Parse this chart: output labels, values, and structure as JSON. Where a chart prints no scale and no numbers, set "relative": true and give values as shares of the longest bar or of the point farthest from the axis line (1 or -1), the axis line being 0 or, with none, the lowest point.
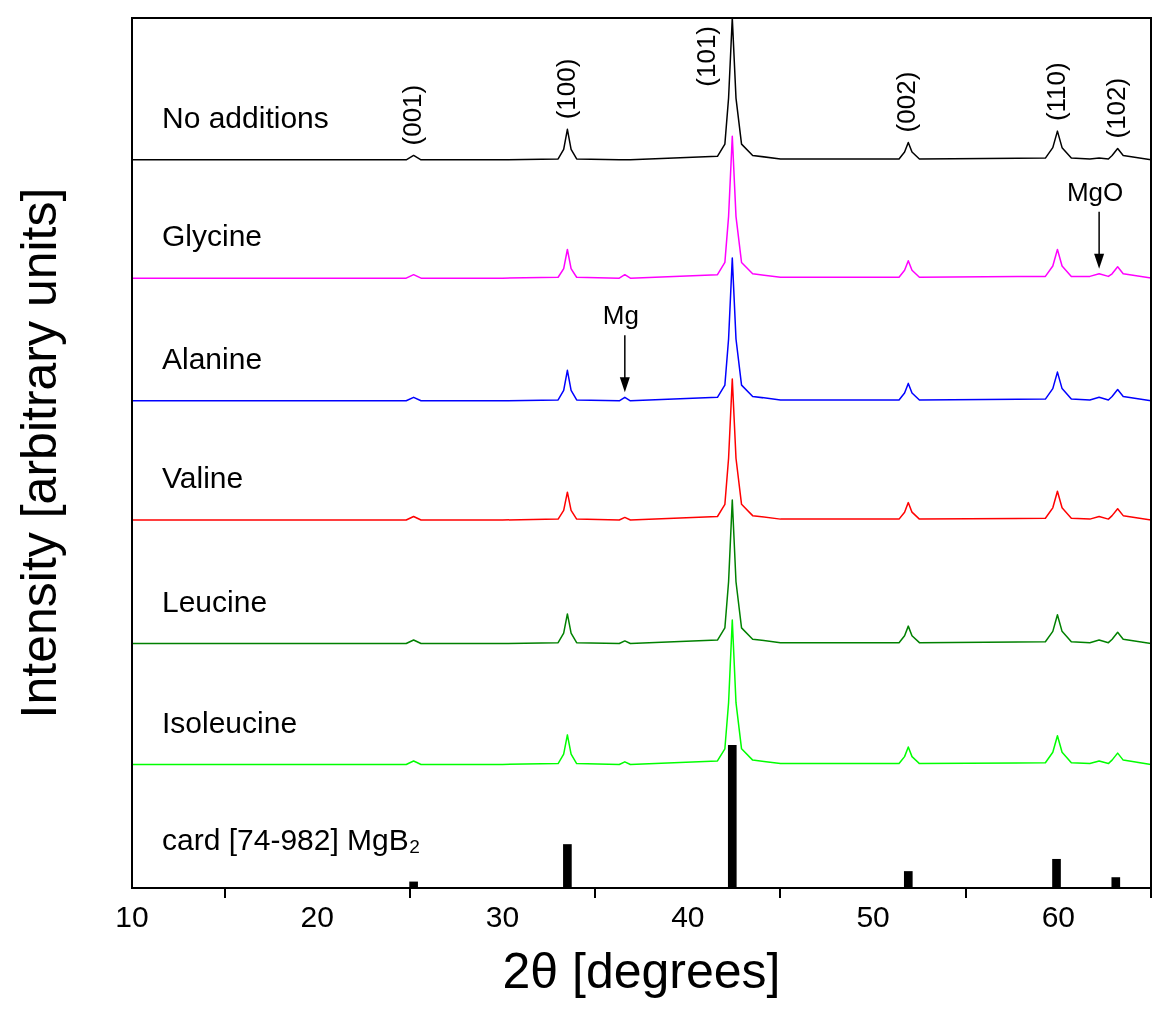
{
  "chart_data": {
    "type": "line",
    "relative": true,
    "xlabel": "2θ [degrees]",
    "ylabel": "Intensity [arbitrary units]",
    "xlim": [
      10,
      65
    ],
    "xticks": [
      10,
      20,
      30,
      40,
      50,
      60
    ],
    "grid": false,
    "legend": false,
    "marker": "none",
    "x": [
      10,
      20,
      24.8,
      25.2,
      25.6,
      30,
      33.0,
      33.3,
      33.5,
      33.7,
      34.0,
      36.3,
      36.6,
      36.9,
      41.6,
      42.0,
      42.2,
      42.4,
      42.6,
      42.9,
      43.5,
      45,
      51.4,
      51.7,
      51.9,
      52.1,
      52.5,
      59.3,
      59.7,
      59.95,
      60.2,
      60.7,
      61.7,
      62.2,
      62.7,
      62.9,
      63.2,
      63.5,
      65
    ],
    "series": [
      {
        "name": "No additions",
        "color": "#000000",
        "values": [
          0.837,
          0.837,
          0.837,
          0.842,
          0.837,
          0.837,
          0.838,
          0.849,
          0.872,
          0.849,
          0.838,
          0.837,
          0.837,
          0.837,
          0.841,
          0.855,
          0.908,
          1.0,
          0.908,
          0.855,
          0.842,
          0.838,
          0.838,
          0.846,
          0.857,
          0.846,
          0.838,
          0.839,
          0.851,
          0.87,
          0.851,
          0.839,
          0.838,
          0.839,
          0.838,
          0.842,
          0.85,
          0.842,
          0.837
        ]
      },
      {
        "name": "Glycine",
        "color": "#ff00ff",
        "values": [
          0.701,
          0.701,
          0.701,
          0.705,
          0.701,
          0.701,
          0.702,
          0.712,
          0.734,
          0.712,
          0.702,
          0.701,
          0.705,
          0.701,
          0.705,
          0.719,
          0.772,
          0.864,
          0.772,
          0.719,
          0.706,
          0.702,
          0.702,
          0.71,
          0.721,
          0.71,
          0.702,
          0.703,
          0.715,
          0.734,
          0.715,
          0.703,
          0.703,
          0.706,
          0.703,
          0.706,
          0.714,
          0.706,
          0.701
        ]
      },
      {
        "name": "Alanine",
        "color": "#0000ff",
        "values": [
          0.56,
          0.56,
          0.56,
          0.564,
          0.56,
          0.56,
          0.561,
          0.572,
          0.595,
          0.572,
          0.561,
          0.56,
          0.564,
          0.56,
          0.564,
          0.578,
          0.631,
          0.724,
          0.631,
          0.578,
          0.565,
          0.561,
          0.561,
          0.569,
          0.58,
          0.569,
          0.561,
          0.562,
          0.574,
          0.593,
          0.574,
          0.562,
          0.561,
          0.564,
          0.561,
          0.565,
          0.573,
          0.565,
          0.56
        ]
      },
      {
        "name": "Valine",
        "color": "#ff0000",
        "values": [
          0.423,
          0.423,
          0.423,
          0.427,
          0.423,
          0.423,
          0.424,
          0.434,
          0.455,
          0.434,
          0.424,
          0.423,
          0.426,
          0.423,
          0.427,
          0.441,
          0.494,
          0.585,
          0.494,
          0.441,
          0.428,
          0.424,
          0.424,
          0.432,
          0.443,
          0.432,
          0.424,
          0.425,
          0.437,
          0.456,
          0.437,
          0.425,
          0.424,
          0.427,
          0.424,
          0.428,
          0.436,
          0.428,
          0.423
        ]
      },
      {
        "name": "Leucine",
        "color": "#008000",
        "values": [
          0.281,
          0.281,
          0.281,
          0.285,
          0.281,
          0.281,
          0.282,
          0.293,
          0.315,
          0.293,
          0.282,
          0.281,
          0.284,
          0.281,
          0.285,
          0.299,
          0.352,
          0.446,
          0.352,
          0.299,
          0.286,
          0.282,
          0.282,
          0.29,
          0.301,
          0.29,
          0.282,
          0.283,
          0.295,
          0.314,
          0.295,
          0.283,
          0.282,
          0.285,
          0.282,
          0.286,
          0.294,
          0.286,
          0.281
        ]
      },
      {
        "name": "Isoleucine",
        "color": "#00ff00",
        "values": [
          0.142,
          0.142,
          0.142,
          0.146,
          0.142,
          0.142,
          0.143,
          0.154,
          0.176,
          0.154,
          0.143,
          0.142,
          0.145,
          0.142,
          0.146,
          0.16,
          0.213,
          0.308,
          0.213,
          0.16,
          0.147,
          0.143,
          0.143,
          0.151,
          0.162,
          0.151,
          0.143,
          0.144,
          0.156,
          0.175,
          0.156,
          0.144,
          0.143,
          0.146,
          0.143,
          0.147,
          0.155,
          0.147,
          0.142
        ]
      },
      {
        "name": "card [74-982] MgB₂",
        "type": "bar",
        "color": "#000000",
        "x": [
          25.2,
          33.5,
          42.4,
          51.9,
          59.9,
          63.1
        ],
        "values": [
          0.007,
          0.05,
          0.164,
          0.019,
          0.033,
          0.012
        ]
      }
    ],
    "annotations": [
      {
        "text": "(001)",
        "x": 25.2,
        "y": 0.842
      },
      {
        "text": "(100)",
        "x": 33.5,
        "y": 0.872
      },
      {
        "text": "(101)",
        "x": 42.4,
        "y": 1.0
      },
      {
        "text": "(002)",
        "x": 51.9,
        "y": 0.857
      },
      {
        "text": "(110)",
        "x": 59.95,
        "y": 0.87
      },
      {
        "text": "(102)",
        "x": 63.2,
        "y": 0.85
      },
      {
        "text": "Mg",
        "x": 36.6,
        "y": 0.564
      },
      {
        "text": "MgO",
        "x": 62.2,
        "y": 0.706
      }
    ]
  }
}
